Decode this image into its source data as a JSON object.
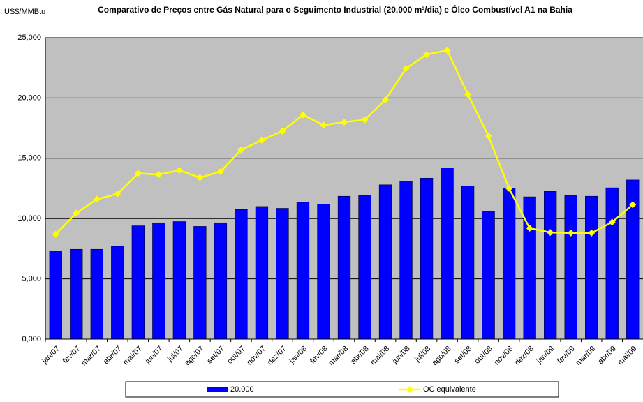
{
  "chart_data": {
    "type": "bar_line",
    "title": "Comparativo de Preços entre Gás Natural para o Seguimento Industrial (20.000 m³/dia) e Óleo Combustível A1 na Bahia",
    "y_label": "US$/MMBtu",
    "categories": [
      "jan/07",
      "fev/07",
      "mar/07",
      "abr/07",
      "mai/07",
      "jun/07",
      "jul/07",
      "ago/07",
      "set/07",
      "out/07",
      "nov/07",
      "dez/07",
      "jan/08",
      "fev/08",
      "mar/08",
      "abr/08",
      "mai/08",
      "jun/08",
      "jul/08",
      "ago/08",
      "set/08",
      "out/08",
      "nov/08",
      "dez/08",
      "jan/09",
      "fev/09",
      "mar/09",
      "abr/09",
      "mai/09"
    ],
    "series": [
      {
        "name": "20.000",
        "type": "bar",
        "color": "#0000ff",
        "values": [
          7300,
          7450,
          7450,
          7700,
          9400,
          9650,
          9750,
          9350,
          9650,
          10750,
          11000,
          10850,
          11350,
          11200,
          11850,
          11900,
          12800,
          13100,
          13350,
          14200,
          12700,
          10600,
          12500,
          11800,
          12250,
          11900,
          11850,
          12550,
          13200
        ]
      },
      {
        "name": "OC equivalente",
        "type": "line",
        "color": "#ffff00",
        "values": [
          8700,
          10450,
          11600,
          12050,
          13750,
          13650,
          14000,
          13400,
          13900,
          15700,
          16500,
          17250,
          18600,
          17750,
          18000,
          18200,
          19850,
          22450,
          23600,
          23950,
          20300,
          16850,
          12500,
          9200,
          8850,
          8800,
          8800,
          9700,
          11150
        ]
      }
    ],
    "ylim": [
      0,
      25000
    ],
    "yticks": [
      {
        "value": 0,
        "label": "0,000"
      },
      {
        "value": 5000,
        "label": "5,000"
      },
      {
        "value": 10000,
        "label": "10,000"
      },
      {
        "value": 15000,
        "label": "15,000"
      },
      {
        "value": 20000,
        "label": "20,000"
      },
      {
        "value": 25000,
        "label": "25,000"
      }
    ],
    "grid": true,
    "legend": "bottom",
    "plot_background": "#c0c0c0"
  }
}
